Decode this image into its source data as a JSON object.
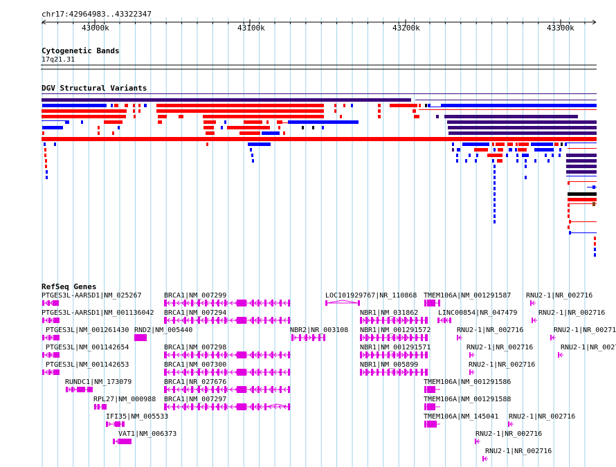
{
  "coords": "chr17:42964983..43322347",
  "ruler": {
    "ticks": [
      "43000k",
      "43100k",
      "43200k",
      "43300k"
    ]
  },
  "cyto": {
    "title": "Cytogenetic Bands",
    "band": "17q21.31"
  },
  "dgv": {
    "title": "DGV Structural Variants"
  },
  "refseq": {
    "title": "RefSeq Genes",
    "genes": [
      "PTGES3L-AARSD1|NM_025267",
      "PTGES3L-AARSD1|NM_001136042",
      "PTGES3L|NM_001261430",
      "PTGES3L|NM_001142654",
      "PTGES3L|NM_001142653",
      "RUNDC1|NM_173079",
      "RPL27|NM_000988",
      "IFI35|NM_005533",
      "VAT1|NM_006373",
      "RND2|NM_005440",
      "BRCA1|NM_007299",
      "BRCA1|NM_007294",
      "BRCA1|NM_007298",
      "BRCA1|NM_007300",
      "BRCA1|NR_027676",
      "BRCA1|NM_007297",
      "NBR2|NR_003108",
      "LOC101929767|NR_110868",
      "NBR1|NM_031862",
      "NBR1|NM_001291572",
      "NBR1|NM_001291571",
      "NBR1|NM_005899",
      "TMEM106A|NM_001291587",
      "LINC00854|NR_047479",
      "TMEM106A|NM_001291586",
      "TMEM106A|NM_001291588",
      "TMEM106A|NM_145041",
      "RNU2-1|NR_002716"
    ]
  },
  "colors": {
    "grid": "#9fd3ea",
    "gene": "#e000e0",
    "red": "#ff0000",
    "blue": "#0000ff",
    "purple": "#3b0a7a",
    "brown": "#8b4513"
  }
}
